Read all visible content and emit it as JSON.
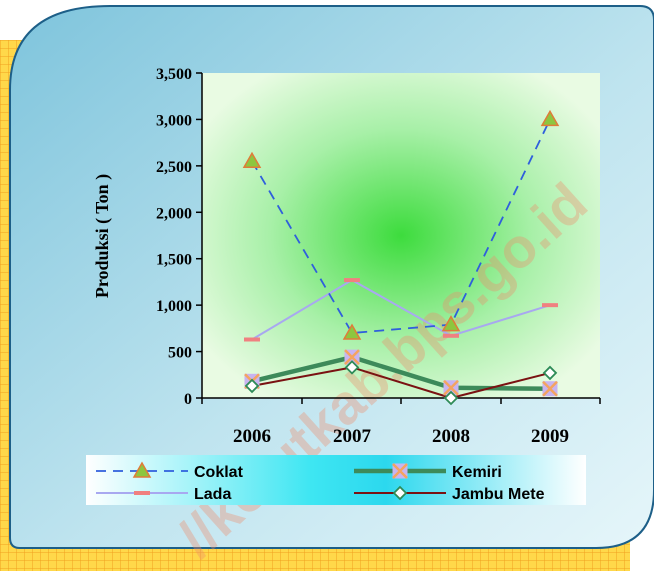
{
  "watermark": "//kolutkab.bps.go.id",
  "colors": {
    "coklat": "#2f5fdc",
    "lada": "#a8a8f0",
    "kemiri": "#3d8a5a",
    "jambu_mete": "#7a1212",
    "coklat_marker": "#8dc63f",
    "coklat_marker_edge": "#e07b39",
    "lada_marker": "#f08080",
    "kemiri_marker": "#c8b4f0",
    "kemiri_marker_edge": "#f4a460",
    "jambu_marker": "#2e8b57"
  },
  "chart_data": {
    "type": "line",
    "title": "",
    "xlabel": "",
    "ylabel": "Produksi ( Ton )",
    "categories": [
      "2006",
      "2007",
      "2008",
      "2009"
    ],
    "ylim": [
      0,
      3500
    ],
    "yticks": [
      0,
      500,
      1000,
      1500,
      2000,
      2500,
      3000,
      3500
    ],
    "ytick_labels": [
      "0",
      "500",
      "1,000",
      "1,500",
      "2,000",
      "2,500",
      "3,000",
      "3,500"
    ],
    "legend_position": "bottom",
    "grid": false,
    "series": [
      {
        "name": "Coklat",
        "values": [
          2550,
          700,
          790,
          3000
        ],
        "style": "dashed",
        "marker": "triangle"
      },
      {
        "name": "Kemiri",
        "values": [
          180,
          440,
          110,
          100
        ],
        "style": "thick",
        "marker": "x-square"
      },
      {
        "name": "Lada",
        "values": [
          630,
          1270,
          670,
          1000
        ],
        "style": "thin",
        "marker": "dash"
      },
      {
        "name": "Jambu Mete",
        "values": [
          130,
          330,
          0,
          270
        ],
        "style": "thin",
        "marker": "diamond"
      }
    ]
  }
}
